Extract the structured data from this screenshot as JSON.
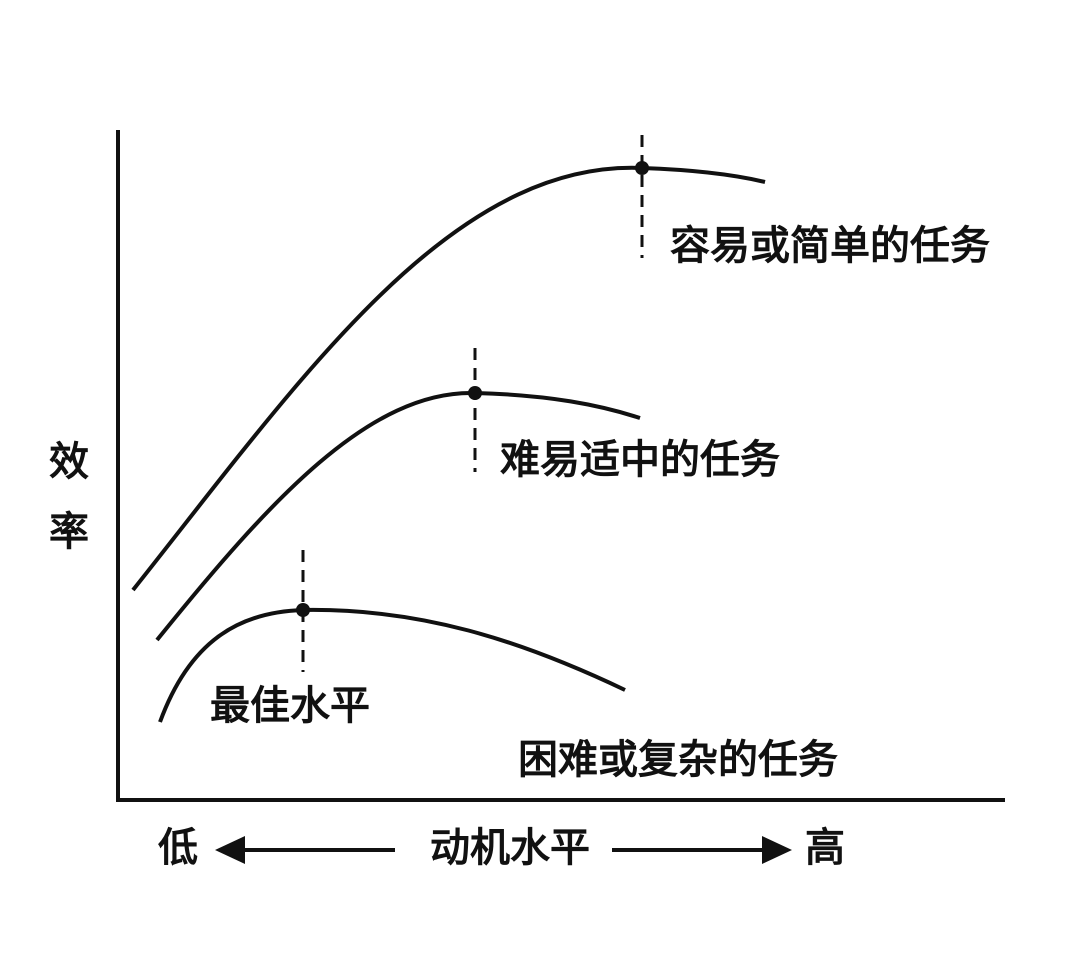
{
  "axes": {
    "y_label": "效率",
    "x_label": "动机水平",
    "x_low": "低",
    "x_high": "高"
  },
  "curves": [
    {
      "label": "容易或简单的任务"
    },
    {
      "label": "难易适中的任务"
    },
    {
      "label": "困难或复杂的任务"
    }
  ],
  "optimum_label": "最佳水平"
}
